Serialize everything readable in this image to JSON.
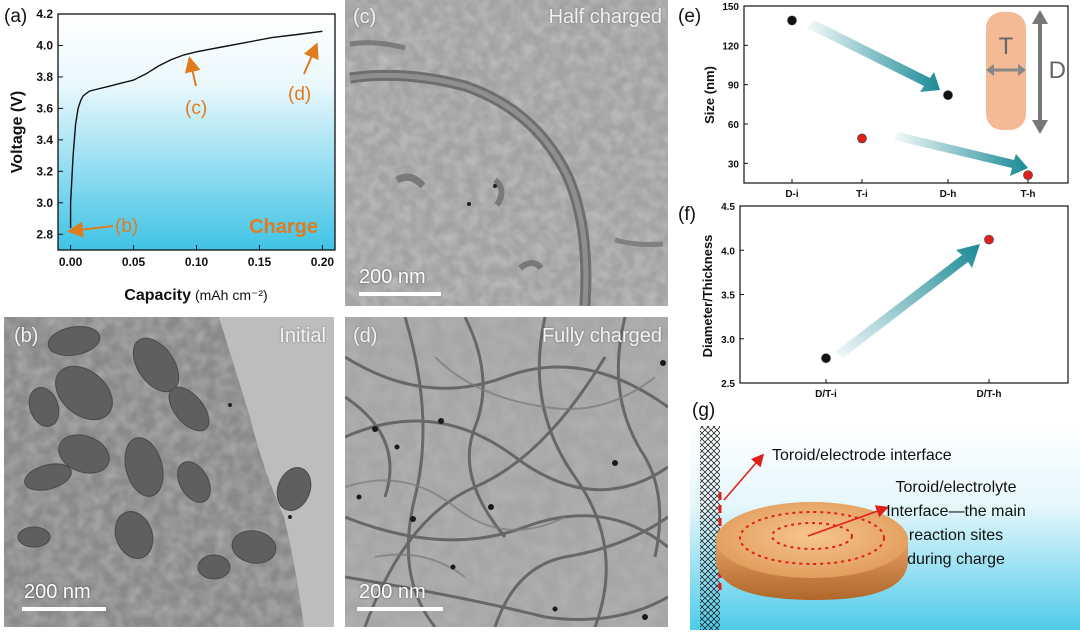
{
  "panel_a": {
    "label": "(a)",
    "charge_label": "Charge",
    "markers": [
      "(b)",
      "(c)",
      "(d)"
    ],
    "chart_data": {
      "type": "line",
      "xlabel": "Capacity",
      "xlabel_unit": "(mAh cm⁻²)",
      "ylabel": "Voltage (V)",
      "xlim": [
        -0.01,
        0.21
      ],
      "ylim": [
        2.7,
        4.2
      ],
      "x_ticks": [
        "0.00",
        "0.05",
        "0.10",
        "0.15",
        "0.20"
      ],
      "y_ticks": [
        "2.8",
        "3.0",
        "3.2",
        "3.4",
        "3.6",
        "3.8",
        "4.0",
        "4.2"
      ],
      "series": [
        {
          "x": [
            0.0,
            0.0,
            0.002,
            0.004,
            0.006,
            0.008,
            0.01,
            0.015,
            0.02,
            0.03,
            0.04,
            0.05,
            0.06,
            0.07,
            0.08,
            0.09,
            0.1,
            0.12,
            0.14,
            0.16,
            0.18,
            0.2
          ],
          "y": [
            2.84,
            3.0,
            3.3,
            3.5,
            3.6,
            3.65,
            3.68,
            3.71,
            3.72,
            3.74,
            3.76,
            3.78,
            3.82,
            3.87,
            3.91,
            3.94,
            3.96,
            3.99,
            4.02,
            4.05,
            4.07,
            4.09
          ]
        }
      ]
    }
  },
  "panel_b": {
    "label": "(b)",
    "title": "Initial",
    "scalebar": "200 nm"
  },
  "panel_c": {
    "label": "(c)",
    "title": "Half charged",
    "scalebar": "200 nm"
  },
  "panel_d": {
    "label": "(d)",
    "title": "Fully charged",
    "scalebar": "200 nm"
  },
  "panel_e": {
    "label": "(e)",
    "legend_T": "T",
    "legend_D": "D",
    "chart_data": {
      "type": "scatter",
      "ylabel": "Size (nm)",
      "categories": [
        "D-i",
        "T-i",
        "D-h",
        "T-h"
      ],
      "ylim": [
        15,
        150
      ],
      "y_ticks": [
        "30",
        "60",
        "90",
        "120",
        "150"
      ],
      "points": [
        {
          "category": "D-i",
          "value": 139,
          "color": "#111111"
        },
        {
          "category": "T-i",
          "value": 49,
          "color": "#e0201b"
        },
        {
          "category": "D-h",
          "value": 82,
          "color": "#111111"
        },
        {
          "category": "T-h",
          "value": 21,
          "color": "#e0201b"
        }
      ]
    }
  },
  "panel_f": {
    "label": "(f)",
    "chart_data": {
      "type": "scatter",
      "ylabel": "Diameter/Thickness",
      "categories": [
        "D/T-i",
        "D/T-h"
      ],
      "ylim": [
        2.5,
        4.5
      ],
      "y_ticks": [
        "2.5",
        "3.0",
        "3.5",
        "4.0",
        "4.5"
      ],
      "points": [
        {
          "category": "D/T-i",
          "value": 2.78,
          "color": "#111111"
        },
        {
          "category": "D/T-h",
          "value": 4.12,
          "color": "#e0201b"
        }
      ]
    }
  },
  "panel_g": {
    "label": "(g)",
    "annotation1": "Toroid/electrode interface",
    "annotation2_lines": [
      "Toroid/electrolyte",
      "Interface—the main",
      "reaction sites",
      "during charge"
    ]
  },
  "colors": {
    "orange": "#e07b1e",
    "teal": "#1a8a96",
    "red": "#e0201b"
  }
}
